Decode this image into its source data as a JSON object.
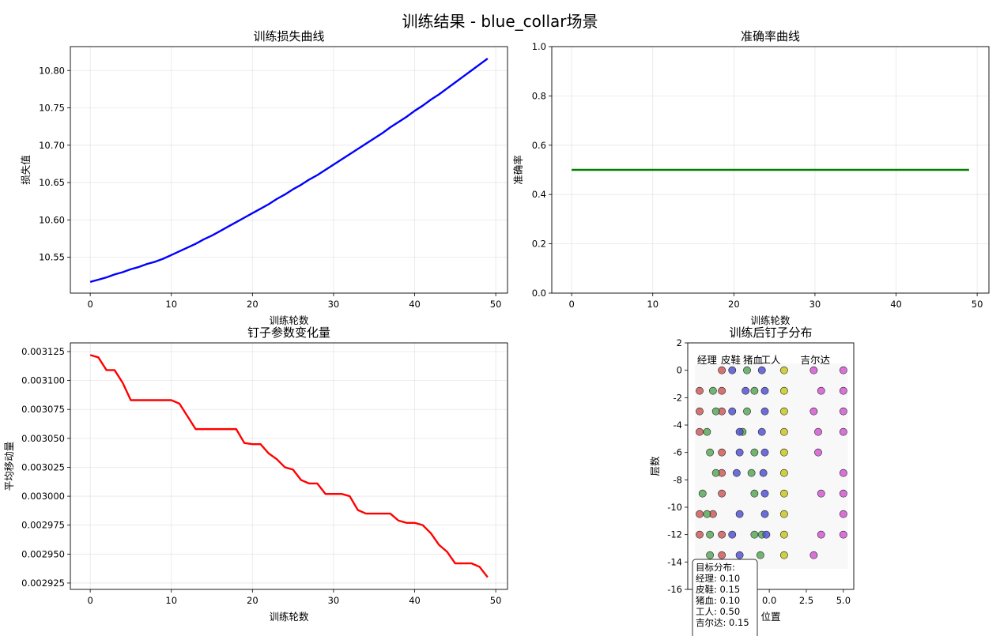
{
  "figure_title": "训练结果 - blue_collar场景",
  "colors": {
    "loss": "#0000ff",
    "accuracy": "#008000",
    "peg_change": "#ff0000",
    "manager": "#cd5c5c",
    "leather_shoes": "#5aa85a",
    "pig_blood": "#5555d4",
    "worker": "#c8c81e",
    "gildas": "#d25ad2"
  },
  "chart_data": [
    {
      "type": "line",
      "title": "训练损失曲线",
      "xlabel": "训练轮数",
      "ylabel": "损失值",
      "xlim": [
        -2.45,
        51.45
      ],
      "ylim": [
        10.502,
        10.832
      ],
      "xticks": [
        0,
        10,
        20,
        30,
        40,
        50
      ],
      "yticks": [
        10.55,
        10.6,
        10.65,
        10.7,
        10.75,
        10.8
      ],
      "ytick_labels": [
        "10.55",
        "10.60",
        "10.65",
        "10.70",
        "10.75",
        "10.80"
      ],
      "grid": true,
      "x": [
        0,
        1,
        2,
        3,
        4,
        5,
        6,
        7,
        8,
        9,
        10,
        11,
        12,
        13,
        14,
        15,
        16,
        17,
        18,
        19,
        20,
        21,
        22,
        23,
        24,
        25,
        26,
        27,
        28,
        29,
        30,
        31,
        32,
        33,
        34,
        35,
        36,
        37,
        38,
        39,
        40,
        41,
        42,
        43,
        44,
        45,
        46,
        47,
        48,
        49
      ],
      "series": [
        {
          "values": [
            10.517,
            10.52,
            10.523,
            10.527,
            10.53,
            10.534,
            10.537,
            10.541,
            10.544,
            10.548,
            10.553,
            10.558,
            10.563,
            10.568,
            10.574,
            10.579,
            10.585,
            10.591,
            10.597,
            10.603,
            10.609,
            10.615,
            10.621,
            10.628,
            10.634,
            10.641,
            10.647,
            10.654,
            10.66,
            10.667,
            10.674,
            10.681,
            10.688,
            10.695,
            10.702,
            10.709,
            10.716,
            10.724,
            10.731,
            10.738,
            10.746,
            10.753,
            10.761,
            10.768,
            10.776,
            10.784,
            10.792,
            10.8,
            10.808,
            10.816
          ]
        }
      ]
    },
    {
      "type": "line",
      "title": "准确率曲线",
      "xlabel": "训练轮数",
      "ylabel": "准确率",
      "xlim": [
        -2.45,
        51.45
      ],
      "ylim": [
        0,
        1
      ],
      "xticks": [
        0,
        10,
        20,
        30,
        40,
        50
      ],
      "yticks": [
        0,
        0.2,
        0.4,
        0.6,
        0.8,
        1.0
      ],
      "ytick_labels": [
        "0.0",
        "0.2",
        "0.4",
        "0.6",
        "0.8",
        "1.0"
      ],
      "grid": true,
      "x": [
        0,
        49
      ],
      "series": [
        {
          "values": [
            0.5,
            0.5
          ]
        }
      ]
    },
    {
      "type": "line",
      "title": "钉子参数变化量",
      "xlabel": "训练轮数",
      "ylabel": "平均移动量",
      "xlim": [
        -2.45,
        51.45
      ],
      "ylim": [
        0.0029195,
        0.0031325
      ],
      "xticks": [
        0,
        10,
        20,
        30,
        40,
        50
      ],
      "yticks": [
        0.002925,
        0.00295,
        0.002975,
        0.003,
        0.003025,
        0.00305,
        0.003075,
        0.0031,
        0.003125
      ],
      "ytick_labels": [
        "0.002925",
        "0.002950",
        "0.002975",
        "0.003000",
        "0.003025",
        "0.003050",
        "0.003075",
        "0.003100",
        "0.003125"
      ],
      "grid": true,
      "x": [
        0,
        1,
        2,
        3,
        4,
        5,
        6,
        7,
        8,
        9,
        10,
        11,
        12,
        13,
        14,
        15,
        16,
        17,
        18,
        19,
        20,
        21,
        22,
        23,
        24,
        25,
        26,
        27,
        28,
        29,
        30,
        31,
        32,
        33,
        34,
        35,
        36,
        37,
        38,
        39,
        40,
        41,
        42,
        43,
        44,
        45,
        46,
        47,
        48,
        49
      ],
      "series": [
        {
          "values": [
            0.003122,
            0.00312,
            0.003109,
            0.003109,
            0.003098,
            0.003083,
            0.003083,
            0.003083,
            0.003083,
            0.003083,
            0.003083,
            0.00308,
            0.003069,
            0.003058,
            0.003058,
            0.003058,
            0.003058,
            0.003058,
            0.003058,
            0.003046,
            0.003045,
            0.003045,
            0.003037,
            0.003032,
            0.003025,
            0.003023,
            0.003014,
            0.003011,
            0.003011,
            0.003002,
            0.003002,
            0.003002,
            0.003,
            0.002988,
            0.002985,
            0.002985,
            0.002985,
            0.002985,
            0.002979,
            0.002977,
            0.002977,
            0.002975,
            0.002968,
            0.002958,
            0.002952,
            0.002942,
            0.002942,
            0.002942,
            0.002939,
            0.00293
          ]
        }
      ]
    },
    {
      "type": "scatter",
      "title": "训练后钉子分布",
      "xlabel": "位置",
      "ylabel": "层数",
      "xlim": [
        -5.5,
        5.7
      ],
      "ylim": [
        -16,
        2
      ],
      "xticks": [
        0.0,
        2.5,
        5.0
      ],
      "xtick_labels": [
        "0.0",
        "2.5",
        "5.0"
      ],
      "yticks": [
        2,
        0,
        -2,
        -4,
        -6,
        -8,
        -10,
        -12,
        -14,
        -16
      ],
      "grid": false,
      "category_labels": [
        {
          "text": "经理",
          "x": -4.2,
          "y": 0.5
        },
        {
          "text": "皮鞋",
          "x": -2.6,
          "y": 0.5
        },
        {
          "text": "猪血",
          "x": -1.1,
          "y": 0.5
        },
        {
          "text": "工人",
          "x": 0.1,
          "y": 0.5
        },
        {
          "text": "吉尔达",
          "x": 3.1,
          "y": 0.5
        }
      ],
      "series": [
        {
          "name": "经理",
          "color_key": "manager",
          "points": [
            [
              -3.2,
              0
            ],
            [
              -4.7,
              -1.5
            ],
            [
              -3.2,
              -1.5
            ],
            [
              -4.7,
              -3
            ],
            [
              -3.2,
              -3
            ],
            [
              -4.7,
              -4.5
            ],
            [
              -3.2,
              -6
            ],
            [
              -3.2,
              -7.5
            ],
            [
              -3.2,
              -9
            ],
            [
              -4.7,
              -10.5
            ],
            [
              -3.8,
              -10.5
            ],
            [
              -4.7,
              -12
            ],
            [
              -3.2,
              -12
            ],
            [
              -3.2,
              -13.5
            ]
          ]
        },
        {
          "name": "皮鞋",
          "color_key": "leather_shoes",
          "points": [
            [
              -1.5,
              0
            ],
            [
              -3.8,
              -1.5
            ],
            [
              -1.0,
              -1.5
            ],
            [
              -3.6,
              -3
            ],
            [
              -1.5,
              -3
            ],
            [
              -4.2,
              -4.5
            ],
            [
              -1.8,
              -4.5
            ],
            [
              -4.0,
              -6
            ],
            [
              -1.0,
              -6
            ],
            [
              -3.6,
              -7.5
            ],
            [
              -1.2,
              -7.5
            ],
            [
              -4.5,
              -9
            ],
            [
              -1.0,
              -9
            ],
            [
              -4.2,
              -10.5
            ],
            [
              -1.0,
              -12
            ],
            [
              -4.0,
              -12
            ],
            [
              -0.5,
              -12
            ],
            [
              -0.6,
              -13.5
            ],
            [
              -4.0,
              -13.5
            ]
          ]
        },
        {
          "name": "猪血",
          "color_key": "pig_blood",
          "points": [
            [
              -0.5,
              0
            ],
            [
              -2.5,
              0
            ],
            [
              -1.6,
              -1.5
            ],
            [
              -0.3,
              -1.5
            ],
            [
              -2.5,
              -3
            ],
            [
              -0.3,
              -3
            ],
            [
              -2.0,
              -4.5
            ],
            [
              -0.5,
              -4.5
            ],
            [
              -2.0,
              -6
            ],
            [
              -0.3,
              -6
            ],
            [
              -2.2,
              -7.5
            ],
            [
              -0.4,
              -7.5
            ],
            [
              -0.3,
              -9
            ],
            [
              -2.0,
              -10.5
            ],
            [
              -0.3,
              -10.5
            ],
            [
              -2.5,
              -12
            ],
            [
              -0.2,
              -12
            ],
            [
              -2.0,
              -13.5
            ]
          ]
        },
        {
          "name": "工人",
          "color_key": "worker",
          "points": [
            [
              1.0,
              0
            ],
            [
              1.0,
              -1.5
            ],
            [
              1.0,
              -3
            ],
            [
              1.0,
              -4.5
            ],
            [
              1.0,
              -6
            ],
            [
              1.0,
              -7.5
            ],
            [
              1.0,
              -9
            ],
            [
              1.0,
              -10.5
            ],
            [
              1.0,
              -12
            ],
            [
              1.0,
              -13.5
            ]
          ]
        },
        {
          "name": "吉尔达",
          "color_key": "gildas",
          "points": [
            [
              3.0,
              0
            ],
            [
              5.0,
              0
            ],
            [
              3.5,
              -1.5
            ],
            [
              5.0,
              -1.5
            ],
            [
              3.0,
              -3
            ],
            [
              5.0,
              -3
            ],
            [
              3.3,
              -4.5
            ],
            [
              5.0,
              -4.5
            ],
            [
              3.3,
              -6
            ],
            [
              5.0,
              -7.5
            ],
            [
              3.5,
              -9
            ],
            [
              5.0,
              -9
            ],
            [
              5.0,
              -10.5
            ],
            [
              3.5,
              -12
            ],
            [
              5.0,
              -12
            ],
            [
              3.0,
              -13.5
            ]
          ]
        }
      ],
      "target_distribution": {
        "title": "目标分布:",
        "lines": [
          "经理: 0.10",
          "皮鞋: 0.15",
          "猪血: 0.10",
          "工人: 0.50",
          "吉尔达: 0.15"
        ]
      }
    }
  ]
}
